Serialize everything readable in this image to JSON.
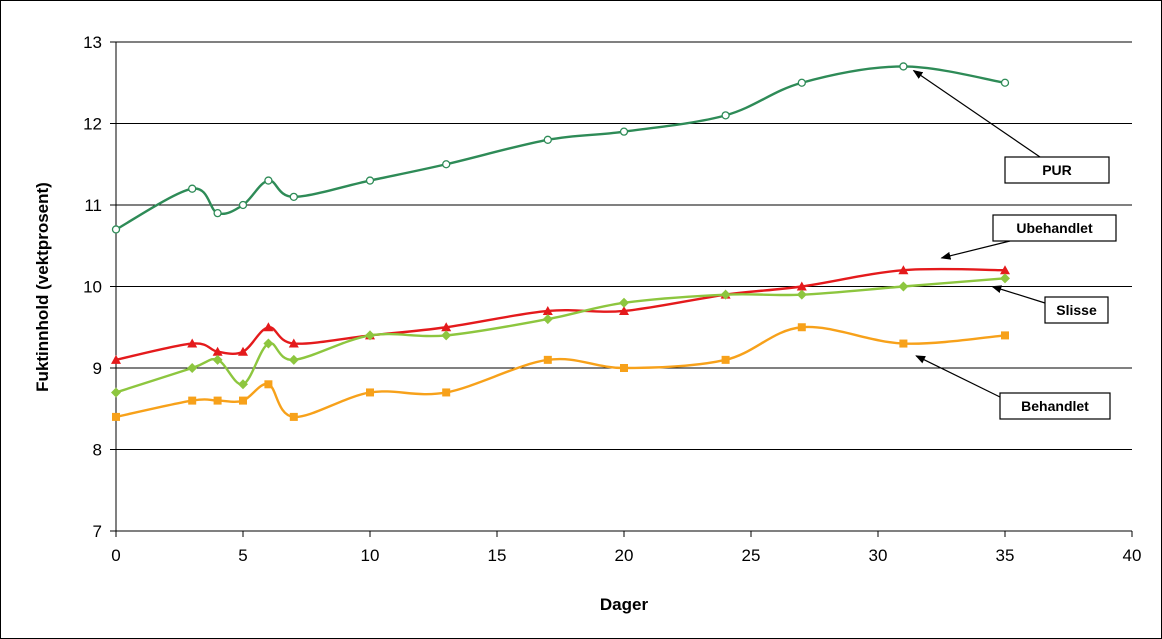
{
  "chart_data": {
    "type": "line",
    "xlabel": "Dager",
    "ylabel": "Fuktinnhold (vektprosent)",
    "xlim": [
      0,
      40
    ],
    "ylim": [
      7,
      13
    ],
    "xticks": [
      0,
      5,
      10,
      15,
      20,
      25,
      30,
      35,
      40
    ],
    "yticks": [
      7,
      8,
      9,
      10,
      11,
      12,
      13
    ],
    "grid": "horizontal",
    "legend": "callout labels",
    "series": [
      {
        "name": "PUR",
        "color": "#2e8b57",
        "marker": "open-circle",
        "x": [
          0,
          3,
          4,
          5,
          6,
          7,
          10,
          13,
          17,
          20,
          24,
          27,
          31,
          35
        ],
        "y": [
          10.7,
          11.2,
          10.9,
          11.0,
          11.3,
          11.1,
          11.3,
          11.5,
          11.8,
          11.9,
          12.1,
          12.5,
          12.7,
          12.5
        ]
      },
      {
        "name": "Ubehandlet",
        "color": "#e41a1c",
        "marker": "triangle",
        "x": [
          0,
          3,
          4,
          5,
          6,
          7,
          10,
          13,
          17,
          20,
          24,
          27,
          31,
          35
        ],
        "y": [
          9.1,
          9.3,
          9.2,
          9.2,
          9.5,
          9.3,
          9.4,
          9.5,
          9.7,
          9.7,
          9.9,
          10.0,
          10.2,
          10.2
        ]
      },
      {
        "name": "Slisse",
        "color": "#8dc63f",
        "marker": "diamond",
        "x": [
          0,
          3,
          4,
          5,
          6,
          7,
          10,
          13,
          17,
          20,
          24,
          27,
          31,
          35
        ],
        "y": [
          8.7,
          9.0,
          9.1,
          8.8,
          9.3,
          9.1,
          9.4,
          9.4,
          9.6,
          9.8,
          9.9,
          9.9,
          10.0,
          10.1
        ]
      },
      {
        "name": "Behandlet",
        "color": "#f7a11a",
        "marker": "square",
        "x": [
          0,
          3,
          4,
          5,
          6,
          7,
          10,
          13,
          17,
          20,
          24,
          27,
          31,
          35
        ],
        "y": [
          8.4,
          8.6,
          8.6,
          8.6,
          8.8,
          8.4,
          8.7,
          8.7,
          9.1,
          9.0,
          9.1,
          9.5,
          9.3,
          9.4
        ]
      }
    ],
    "callouts": [
      {
        "label": "PUR",
        "target": [
          31.4,
          12.65
        ]
      },
      {
        "label": "Ubehandlet",
        "target": [
          32.5,
          10.35
        ]
      },
      {
        "label": "Slisse",
        "target": [
          34.5,
          10.0
        ]
      },
      {
        "label": "Behandlet",
        "target": [
          31.5,
          9.15
        ]
      }
    ]
  }
}
